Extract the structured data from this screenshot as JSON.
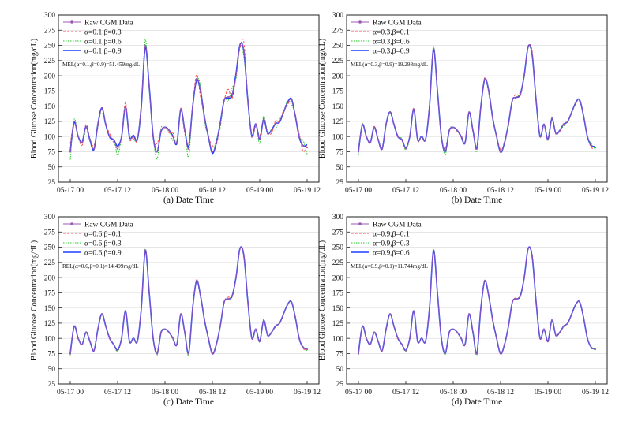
{
  "figure": {
    "colors": {
      "raw": "#9b59b6",
      "series1": "#ff4d4d",
      "series2": "#22cc22",
      "series3": "#1f3fff",
      "axis": "#222222",
      "grid": "#d8d8d8"
    }
  },
  "chart_data": [
    {
      "type": "line",
      "panel": "a",
      "caption": "(a) Date Time",
      "ylabel": "Blood Glucose Concentration(mg/dL)",
      "x_ticks": [
        "05-17 00",
        "05-17 12",
        "05-18 00",
        "05-18 12",
        "05-19 00",
        "05-19 12"
      ],
      "x_tick_hours": [
        0,
        12,
        24,
        36,
        48,
        60
      ],
      "xlim": [
        -3,
        63
      ],
      "ylim": [
        25,
        300
      ],
      "y_ticks": [
        25,
        50,
        75,
        100,
        125,
        150,
        175,
        200,
        225,
        250,
        275,
        300
      ],
      "legend": [
        "Raw CGM Data",
        "α=0.1,β=0.3",
        "α=0.1,β=0.6",
        "α=0.1,β=0.9"
      ],
      "annotation": "MEL(α=0.1,β=0.9)=51.459mg/dL",
      "deviation": 14,
      "x_hours": [
        0,
        1,
        2,
        3,
        4,
        5,
        6,
        7,
        8,
        9,
        10,
        11,
        12,
        13,
        14,
        15,
        16,
        17,
        18,
        19,
        20,
        21,
        22,
        23,
        24,
        25,
        26,
        27,
        28,
        29,
        30,
        31,
        32,
        33,
        34,
        35,
        36,
        37,
        38,
        39,
        40,
        41,
        42,
        43,
        44,
        45,
        46,
        47,
        48,
        49,
        50,
        51,
        52,
        53,
        54,
        55,
        56,
        57,
        58,
        59,
        60
      ],
      "raw_values": [
        75,
        125,
        100,
        90,
        115,
        95,
        80,
        120,
        145,
        120,
        100,
        95,
        80,
        100,
        150,
        100,
        100,
        95,
        150,
        250,
        180,
        100,
        75,
        110,
        115,
        110,
        100,
        90,
        145,
        110,
        80,
        150,
        195,
        175,
        130,
        100,
        75,
        90,
        120,
        160,
        165,
        170,
        200,
        250,
        240,
        160,
        100,
        120,
        95,
        130,
        105,
        110,
        120,
        125,
        140,
        155,
        160,
        135,
        100,
        85,
        82
      ]
    },
    {
      "type": "line",
      "panel": "b",
      "caption": "(b) Date Time",
      "ylabel": "Blood Glucose Concentration(mg/dL)",
      "x_ticks": [
        "05-17 00",
        "05-17 12",
        "05-18 00",
        "05-18 12",
        "05-19 00",
        "05-19 12"
      ],
      "x_tick_hours": [
        0,
        12,
        24,
        36,
        48,
        60
      ],
      "xlim": [
        -3,
        63
      ],
      "ylim": [
        25,
        300
      ],
      "y_ticks": [
        25,
        50,
        75,
        100,
        125,
        150,
        175,
        200,
        225,
        250,
        275,
        300
      ],
      "legend": [
        "Raw CGM Data",
        "α=0.3,β=0.1",
        "α=0.3,β=0.6",
        "α=0.3,β=0.9"
      ],
      "annotation": "MEL(α=0.3,β=0.9)=19.298mg/dL",
      "deviation": 5,
      "x_hours": [
        0,
        1,
        2,
        3,
        4,
        5,
        6,
        7,
        8,
        9,
        10,
        11,
        12,
        13,
        14,
        15,
        16,
        17,
        18,
        19,
        20,
        21,
        22,
        23,
        24,
        25,
        26,
        27,
        28,
        29,
        30,
        31,
        32,
        33,
        34,
        35,
        36,
        37,
        38,
        39,
        40,
        41,
        42,
        43,
        44,
        45,
        46,
        47,
        48,
        49,
        50,
        51,
        52,
        53,
        54,
        55,
        56,
        57,
        58,
        59,
        60
      ],
      "raw_values": [
        75,
        120,
        100,
        90,
        115,
        95,
        80,
        120,
        140,
        120,
        100,
        95,
        80,
        100,
        145,
        95,
        100,
        95,
        150,
        245,
        175,
        100,
        75,
        110,
        115,
        110,
        100,
        90,
        140,
        110,
        80,
        150,
        195,
        175,
        130,
        100,
        75,
        90,
        120,
        160,
        165,
        170,
        200,
        248,
        235,
        160,
        100,
        120,
        95,
        130,
        105,
        110,
        120,
        125,
        140,
        155,
        160,
        135,
        100,
        85,
        82
      ]
    },
    {
      "type": "line",
      "panel": "c",
      "caption": "(c) Date Time",
      "ylabel": "Blood Glucose Concentration(mg/dL)",
      "x_ticks": [
        "05-17 00",
        "05-17 12",
        "05-18 00",
        "05-18 12",
        "05-19 00",
        "05-19 12"
      ],
      "x_tick_hours": [
        0,
        12,
        24,
        36,
        48,
        60
      ],
      "xlim": [
        -3,
        63
      ],
      "ylim": [
        25,
        300
      ],
      "y_ticks": [
        25,
        50,
        75,
        100,
        125,
        150,
        175,
        200,
        225,
        250,
        275,
        300
      ],
      "legend": [
        "Raw CGM Data",
        "α=0.6,β=0.1",
        "α=0.6,β=0.3",
        "α=0.6,β=0.9"
      ],
      "annotation": "REL(α=0.6,β=0.1)=14.499mg/dL",
      "deviation": 3,
      "x_hours": [
        0,
        1,
        2,
        3,
        4,
        5,
        6,
        7,
        8,
        9,
        10,
        11,
        12,
        13,
        14,
        15,
        16,
        17,
        18,
        19,
        20,
        21,
        22,
        23,
        24,
        25,
        26,
        27,
        28,
        29,
        30,
        31,
        32,
        33,
        34,
        35,
        36,
        37,
        38,
        39,
        40,
        41,
        42,
        43,
        44,
        45,
        46,
        47,
        48,
        49,
        50,
        51,
        52,
        53,
        54,
        55,
        56,
        57,
        58,
        59,
        60
      ],
      "raw_values": [
        75,
        120,
        100,
        90,
        110,
        95,
        80,
        115,
        140,
        120,
        100,
        90,
        80,
        100,
        145,
        95,
        100,
        95,
        150,
        245,
        175,
        100,
        75,
        110,
        115,
        110,
        100,
        90,
        140,
        110,
        75,
        150,
        195,
        170,
        130,
        100,
        75,
        90,
        120,
        160,
        165,
        170,
        200,
        248,
        235,
        160,
        100,
        115,
        95,
        130,
        105,
        110,
        120,
        125,
        140,
        155,
        160,
        135,
        100,
        85,
        82
      ]
    },
    {
      "type": "line",
      "panel": "d",
      "caption": "(d) Date Time",
      "ylabel": "Blood Glucose Concentration(mg/dL)",
      "x_ticks": [
        "05-17 00",
        "05-17 12",
        "05-18 00",
        "05-18 12",
        "05-19 00",
        "05-19 12"
      ],
      "x_tick_hours": [
        0,
        12,
        24,
        36,
        48,
        60
      ],
      "xlim": [
        -3,
        63
      ],
      "ylim": [
        25,
        300
      ],
      "y_ticks": [
        25,
        50,
        75,
        100,
        125,
        150,
        175,
        200,
        225,
        250,
        275,
        300
      ],
      "legend": [
        "Raw CGM Data",
        "α=0.9,β=0.1",
        "α=0.9,β=0.3",
        "α=0.9,β=0.6"
      ],
      "annotation": "MEL(α=0.9,β=0.1)=11.744mg/dL",
      "deviation": 2,
      "x_hours": [
        0,
        1,
        2,
        3,
        4,
        5,
        6,
        7,
        8,
        9,
        10,
        11,
        12,
        13,
        14,
        15,
        16,
        17,
        18,
        19,
        20,
        21,
        22,
        23,
        24,
        25,
        26,
        27,
        28,
        29,
        30,
        31,
        32,
        33,
        34,
        35,
        36,
        37,
        38,
        39,
        40,
        41,
        42,
        43,
        44,
        45,
        46,
        47,
        48,
        49,
        50,
        51,
        52,
        53,
        54,
        55,
        56,
        57,
        58,
        59,
        60
      ],
      "raw_values": [
        75,
        120,
        100,
        90,
        110,
        95,
        80,
        115,
        140,
        120,
        100,
        90,
        80,
        100,
        145,
        95,
        100,
        95,
        150,
        245,
        175,
        100,
        75,
        110,
        115,
        110,
        100,
        90,
        140,
        110,
        75,
        150,
        195,
        170,
        130,
        100,
        75,
        90,
        120,
        160,
        165,
        170,
        200,
        248,
        235,
        160,
        100,
        115,
        95,
        130,
        105,
        110,
        120,
        125,
        140,
        155,
        160,
        135,
        100,
        85,
        82
      ]
    }
  ]
}
